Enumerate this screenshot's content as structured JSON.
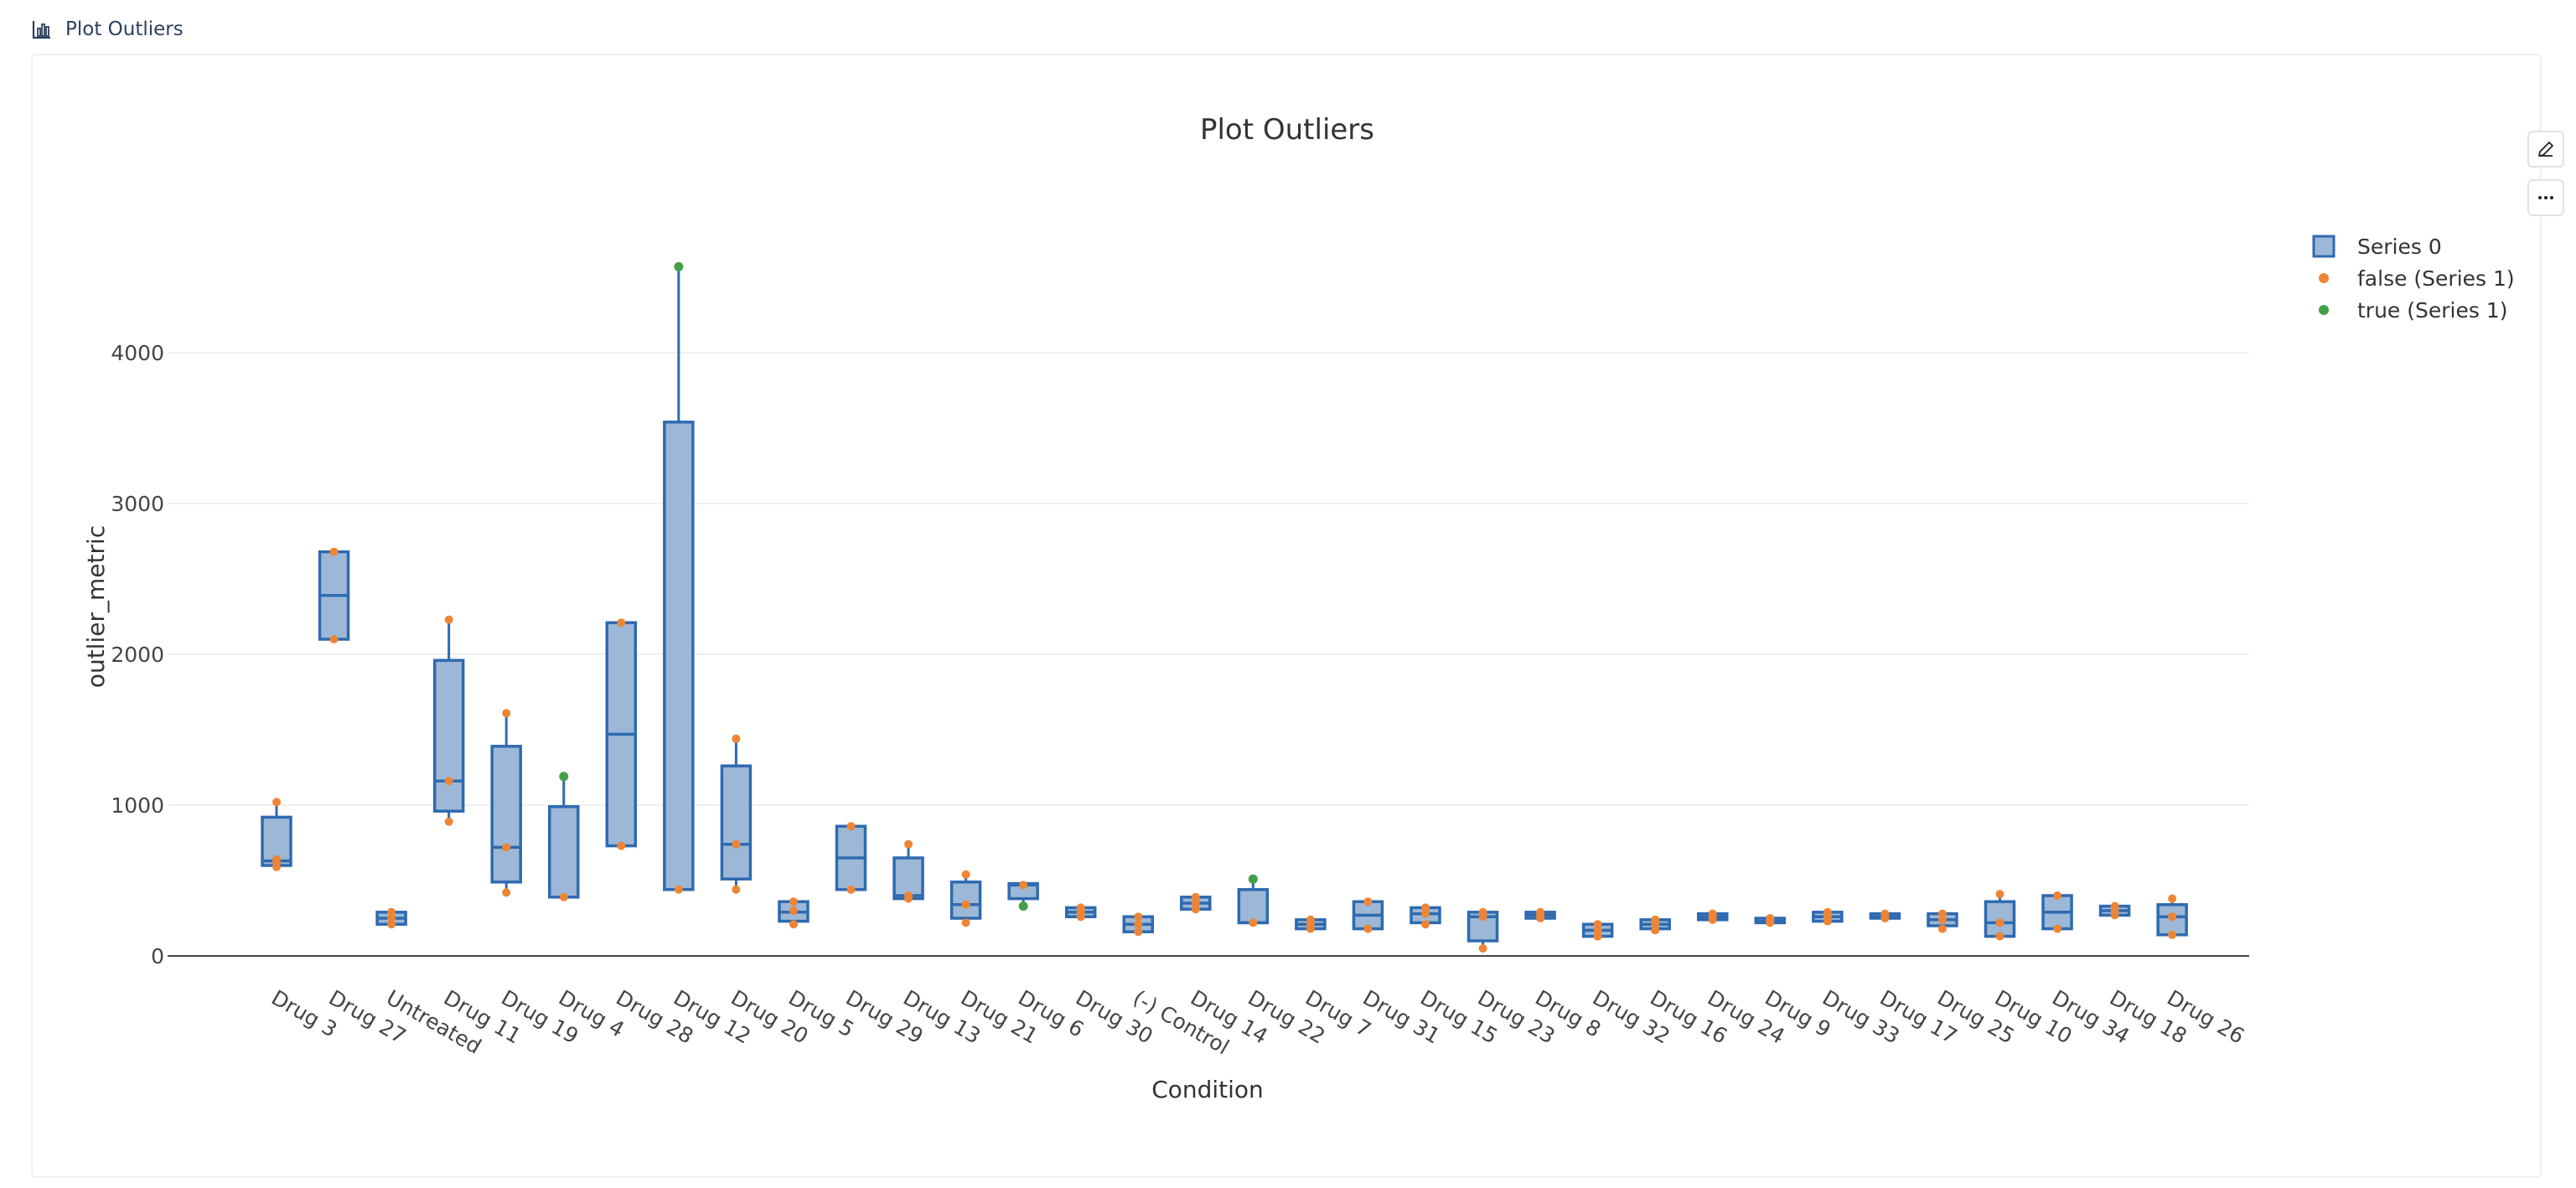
{
  "page": {
    "title": "Plot Outliers",
    "icon": "bar-chart-icon"
  },
  "toolbar": {
    "edit_icon": "pencil-icon",
    "more_icon": "ellipsis-icon"
  },
  "colors": {
    "box_fill": "#9db8d6",
    "box_stroke": "#2e6ab0",
    "point_false": "#ee8535",
    "point_true": "#43a047",
    "grid": "#ebebeb",
    "axis": "#444444"
  },
  "chart_data": {
    "type": "box",
    "title": "Plot Outliers",
    "xlabel": "Condition",
    "ylabel": "outlier_metric",
    "ylim": [
      -200,
      4800
    ],
    "yticks": [
      0,
      1000,
      2000,
      3000,
      4000
    ],
    "grid": true,
    "legend_position": "top-right",
    "legend": [
      {
        "label": "Series 0",
        "marker": "box"
      },
      {
        "label": "false (Series 1)",
        "marker": "point-false"
      },
      {
        "label": "true (Series 1)",
        "marker": "point-true"
      }
    ],
    "categories": [
      {
        "name": "Drug 3",
        "lower": 600,
        "q1": 600,
        "median": 630,
        "q3": 920,
        "upper": 1020,
        "points_false": [
          590,
          620,
          640,
          1020
        ],
        "points_true": []
      },
      {
        "name": "Drug 27",
        "lower": 2100,
        "q1": 2100,
        "median": 2390,
        "q3": 2680,
        "upper": 2680,
        "points_false": [
          2100,
          2680
        ],
        "points_true": []
      },
      {
        "name": "Untreated",
        "lower": 210,
        "q1": 210,
        "median": 250,
        "q3": 290,
        "upper": 290,
        "points_false": [
          210,
          250,
          290
        ],
        "points_true": []
      },
      {
        "name": "Drug 11",
        "lower": 890,
        "q1": 960,
        "median": 1160,
        "q3": 1960,
        "upper": 2230,
        "points_false": [
          890,
          1160,
          2230
        ],
        "points_true": []
      },
      {
        "name": "Drug 19",
        "lower": 420,
        "q1": 490,
        "median": 720,
        "q3": 1390,
        "upper": 1610,
        "points_false": [
          420,
          720,
          1610
        ],
        "points_true": []
      },
      {
        "name": "Drug 4",
        "lower": 390,
        "q1": 390,
        "median": 390,
        "q3": 990,
        "upper": 1190,
        "points_false": [
          390
        ],
        "points_true": [
          1190
        ]
      },
      {
        "name": "Drug 28",
        "lower": 730,
        "q1": 730,
        "median": 1470,
        "q3": 2210,
        "upper": 2210,
        "points_false": [
          730,
          2210
        ],
        "points_true": []
      },
      {
        "name": "Drug 12",
        "lower": 440,
        "q1": 440,
        "median": 440,
        "q3": 3540,
        "upper": 4570,
        "points_false": [
          440
        ],
        "points_true": [
          4570
        ]
      },
      {
        "name": "Drug 20",
        "lower": 440,
        "q1": 510,
        "median": 740,
        "q3": 1260,
        "upper": 1440,
        "points_false": [
          440,
          740,
          1440
        ],
        "points_true": []
      },
      {
        "name": "Drug 5",
        "lower": 210,
        "q1": 230,
        "median": 290,
        "q3": 360,
        "upper": 360,
        "points_false": [
          210,
          300,
          360
        ],
        "points_true": []
      },
      {
        "name": "Drug 29",
        "lower": 440,
        "q1": 440,
        "median": 650,
        "q3": 860,
        "upper": 860,
        "points_false": [
          440,
          860
        ],
        "points_true": []
      },
      {
        "name": "Drug 13",
        "lower": 380,
        "q1": 380,
        "median": 400,
        "q3": 650,
        "upper": 740,
        "points_false": [
          380,
          400,
          740
        ],
        "points_true": []
      },
      {
        "name": "Drug 21",
        "lower": 220,
        "q1": 250,
        "median": 340,
        "q3": 490,
        "upper": 540,
        "points_false": [
          220,
          340,
          540
        ],
        "points_true": []
      },
      {
        "name": "Drug 6",
        "lower": 330,
        "q1": 380,
        "median": 470,
        "q3": 480,
        "upper": 480,
        "points_false": [
          470
        ],
        "points_true": [
          330
        ]
      },
      {
        "name": "Drug 30",
        "lower": 260,
        "q1": 260,
        "median": 290,
        "q3": 320,
        "upper": 320,
        "points_false": [
          260,
          290,
          320
        ],
        "points_true": []
      },
      {
        "name": "(-) Control",
        "lower": 160,
        "q1": 160,
        "median": 210,
        "q3": 260,
        "upper": 260,
        "points_false": [
          160,
          210,
          260
        ],
        "points_true": []
      },
      {
        "name": "Drug 14",
        "lower": 310,
        "q1": 310,
        "median": 350,
        "q3": 390,
        "upper": 390,
        "points_false": [
          310,
          350,
          390
        ],
        "points_true": []
      },
      {
        "name": "Drug 22",
        "lower": 220,
        "q1": 220,
        "median": 220,
        "q3": 440,
        "upper": 510,
        "points_false": [
          220
        ],
        "points_true": [
          510
        ]
      },
      {
        "name": "Drug 7",
        "lower": 180,
        "q1": 180,
        "median": 210,
        "q3": 240,
        "upper": 240,
        "points_false": [
          180,
          210,
          240
        ],
        "points_true": []
      },
      {
        "name": "Drug 31",
        "lower": 180,
        "q1": 180,
        "median": 270,
        "q3": 360,
        "upper": 360,
        "points_false": [
          180,
          360
        ],
        "points_true": []
      },
      {
        "name": "Drug 15",
        "lower": 210,
        "q1": 220,
        "median": 280,
        "q3": 320,
        "upper": 320,
        "points_false": [
          210,
          280,
          320
        ],
        "points_true": []
      },
      {
        "name": "Drug 23",
        "lower": 50,
        "q1": 100,
        "median": 260,
        "q3": 290,
        "upper": 290,
        "points_false": [
          50,
          260,
          290
        ],
        "points_true": []
      },
      {
        "name": "Drug 8",
        "lower": 250,
        "q1": 250,
        "median": 270,
        "q3": 290,
        "upper": 290,
        "points_false": [
          250,
          270,
          290
        ],
        "points_true": []
      },
      {
        "name": "Drug 32",
        "lower": 130,
        "q1": 130,
        "median": 170,
        "q3": 210,
        "upper": 210,
        "points_false": [
          130,
          170,
          210
        ],
        "points_true": []
      },
      {
        "name": "Drug 16",
        "lower": 170,
        "q1": 180,
        "median": 210,
        "q3": 240,
        "upper": 240,
        "points_false": [
          170,
          210,
          240
        ],
        "points_true": []
      },
      {
        "name": "Drug 24",
        "lower": 240,
        "q1": 240,
        "median": 260,
        "q3": 280,
        "upper": 280,
        "points_false": [
          240,
          260,
          280
        ],
        "points_true": []
      },
      {
        "name": "Drug 9",
        "lower": 220,
        "q1": 220,
        "median": 230,
        "q3": 250,
        "upper": 250,
        "points_false": [
          220,
          230,
          250
        ],
        "points_true": []
      },
      {
        "name": "Drug 33",
        "lower": 230,
        "q1": 230,
        "median": 260,
        "q3": 290,
        "upper": 290,
        "points_false": [
          230,
          260,
          290
        ],
        "points_true": []
      },
      {
        "name": "Drug 17",
        "lower": 250,
        "q1": 250,
        "median": 260,
        "q3": 280,
        "upper": 280,
        "points_false": [
          250,
          260,
          280
        ],
        "points_true": []
      },
      {
        "name": "Drug 25",
        "lower": 180,
        "q1": 200,
        "median": 240,
        "q3": 280,
        "upper": 280,
        "points_false": [
          180,
          240,
          280
        ],
        "points_true": []
      },
      {
        "name": "Drug 10",
        "lower": 130,
        "q1": 130,
        "median": 220,
        "q3": 360,
        "upper": 410,
        "points_false": [
          130,
          220,
          410
        ],
        "points_true": []
      },
      {
        "name": "Drug 34",
        "lower": 180,
        "q1": 180,
        "median": 290,
        "q3": 400,
        "upper": 400,
        "points_false": [
          180,
          400
        ],
        "points_true": []
      },
      {
        "name": "Drug 18",
        "lower": 270,
        "q1": 270,
        "median": 300,
        "q3": 330,
        "upper": 330,
        "points_false": [
          270,
          300,
          330
        ],
        "points_true": []
      },
      {
        "name": "Drug 26",
        "lower": 140,
        "q1": 140,
        "median": 260,
        "q3": 340,
        "upper": 380,
        "points_false": [
          140,
          260,
          380
        ],
        "points_true": []
      }
    ]
  }
}
